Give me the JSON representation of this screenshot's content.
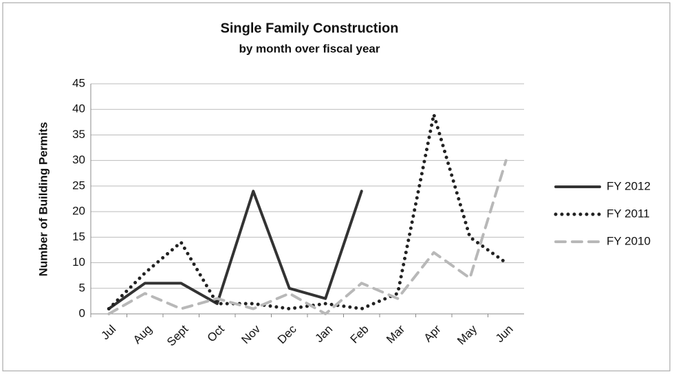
{
  "chart_data": {
    "type": "line",
    "title": "Single Family Construction",
    "subtitle": "by month over fiscal year",
    "y_label": "Number of Building Permits",
    "categories": [
      "Jul",
      "Aug",
      "Sept",
      "Oct",
      "Nov",
      "Dec",
      "Jan",
      "Feb",
      "Mar",
      "Apr",
      "May",
      "Jun"
    ],
    "series": [
      {
        "name": "FY 2012",
        "color": "#333333",
        "style": "solid",
        "values": [
          1,
          6,
          6,
          2,
          24,
          5,
          3,
          24,
          null,
          null,
          null,
          null
        ]
      },
      {
        "name": "FY 2011",
        "color": "#222222",
        "style": "dotted",
        "values": [
          1,
          8,
          14,
          2,
          2,
          1,
          2,
          1,
          4,
          39,
          15,
          10
        ]
      },
      {
        "name": "FY 2010",
        "color": "#b8b8b8",
        "style": "dashed",
        "values": [
          0,
          4,
          1,
          3,
          1,
          4,
          0,
          6,
          3,
          12,
          7,
          30
        ]
      }
    ],
    "ylim": [
      0,
      45
    ],
    "yticks": [
      0,
      5,
      10,
      15,
      20,
      25,
      30,
      35,
      40,
      45
    ],
    "grid": true,
    "legend": "right"
  }
}
